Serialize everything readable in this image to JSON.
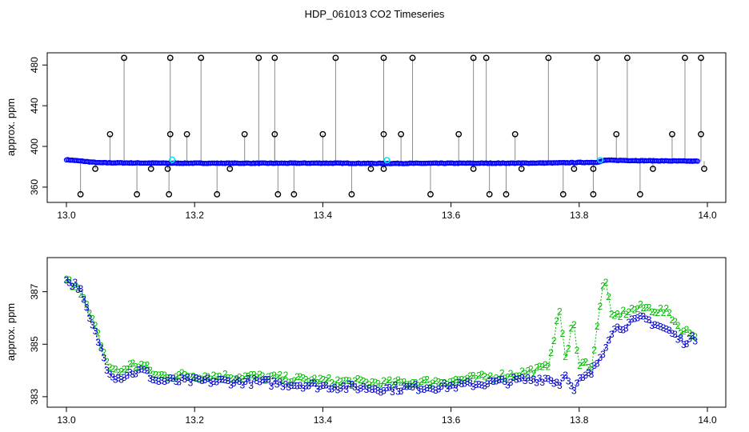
{
  "title": "HDP_061013  CO2 Timeseries",
  "colors": {
    "raw_points": "#000000",
    "raw_lines": "#8c8c8c",
    "smooth_points": "#0000ff",
    "flagged_points": "#00e5ee",
    "series2": "#00bb00",
    "series3": "#0000cc"
  },
  "chart_data": [
    {
      "type": "scatter",
      "title": "",
      "xlabel": "",
      "ylabel": "approx. ppm",
      "xlim": [
        13.0,
        14.0
      ],
      "ylim": [
        345,
        492
      ],
      "xticks": [
        13.0,
        13.2,
        13.4,
        13.6,
        13.8,
        14.0
      ],
      "xtick_labels": [
        "13.0",
        "13.2",
        "13.4",
        "13.6",
        "13.8",
        "14.0"
      ],
      "yticks": [
        360,
        400,
        440,
        480
      ],
      "ytick_labels": [
        "360",
        "400",
        "440",
        "480"
      ],
      "grid": false,
      "baseline": [
        [
          13.0,
          387
        ],
        [
          13.05,
          384
        ],
        [
          13.15,
          383.6
        ],
        [
          13.3,
          383.5
        ],
        [
          13.4,
          383.6
        ],
        [
          13.5,
          383.3
        ],
        [
          13.6,
          383.5
        ],
        [
          13.7,
          383.6
        ],
        [
          13.76,
          383.8
        ],
        [
          13.83,
          384.5
        ],
        [
          13.84,
          386.5
        ],
        [
          13.9,
          386
        ],
        [
          13.98,
          385.5
        ]
      ],
      "outliers_high": [
        13.09,
        13.162,
        13.21,
        13.3,
        13.325,
        13.42,
        13.495,
        13.54,
        13.635,
        13.655,
        13.752,
        13.828,
        13.875,
        13.965,
        13.99
      ],
      "outliers_mid": [
        13.068,
        13.162,
        13.188,
        13.278,
        13.325,
        13.4,
        13.495,
        13.522,
        13.612,
        13.7,
        13.858,
        13.945,
        13.99
      ],
      "outliers_low": [
        13.022,
        13.11,
        13.16,
        13.235,
        13.33,
        13.355,
        13.445,
        13.568,
        13.66,
        13.686,
        13.775,
        13.822,
        13.895
      ],
      "outliers_near": [
        13.045,
        13.132,
        13.158,
        13.255,
        13.475,
        13.495,
        13.635,
        13.71,
        13.792,
        13.822,
        13.915,
        13.995
      ],
      "outlier_values": {
        "high": 487,
        "mid": 412,
        "low": 353,
        "near": 378
      },
      "flagged": [
        [
          13.165,
          387
        ],
        [
          13.5,
          386.5
        ],
        [
          13.833,
          386.5
        ]
      ]
    },
    {
      "type": "scatter",
      "title": "",
      "xlabel": "",
      "ylabel": "approx. ppm",
      "xlim": [
        13.0,
        14.0
      ],
      "ylim": [
        382.6,
        388.3
      ],
      "xticks": [
        13.0,
        13.2,
        13.4,
        13.6,
        13.8,
        14.0
      ],
      "xtick_labels": [
        "13.0",
        "13.2",
        "13.4",
        "13.6",
        "13.8",
        "14.0"
      ],
      "yticks": [
        383,
        385,
        387
      ],
      "ytick_labels": [
        "383",
        "385",
        "387"
      ],
      "grid": false,
      "series": [
        {
          "marker": "2",
          "profile": [
            [
              13.0,
              387.4
            ],
            [
              13.02,
              387.2
            ],
            [
              13.035,
              386.2
            ],
            [
              13.05,
              385.3
            ],
            [
              13.065,
              384.2
            ],
            [
              13.08,
              383.9
            ],
            [
              13.1,
              384.2
            ],
            [
              13.12,
              384.2
            ],
            [
              13.14,
              383.8
            ],
            [
              13.2,
              383.8
            ],
            [
              13.3,
              383.75
            ],
            [
              13.4,
              383.6
            ],
            [
              13.5,
              383.5
            ],
            [
              13.6,
              383.6
            ],
            [
              13.7,
              383.85
            ],
            [
              13.75,
              384.1
            ],
            [
              13.77,
              386.3
            ],
            [
              13.78,
              384.2
            ],
            [
              13.79,
              386
            ],
            [
              13.8,
              384.3
            ],
            [
              13.82,
              384.2
            ],
            [
              13.84,
              387.7
            ],
            [
              13.85,
              386
            ],
            [
              13.88,
              386.3
            ],
            [
              13.9,
              386.4
            ],
            [
              13.94,
              386.2
            ],
            [
              13.96,
              385.5
            ],
            [
              13.98,
              385.4
            ]
          ]
        },
        {
          "marker": "3",
          "profile": [
            [
              13.0,
              387.4
            ],
            [
              13.02,
              387.2
            ],
            [
              13.035,
              386
            ],
            [
              13.05,
              385.1
            ],
            [
              13.065,
              384
            ],
            [
              13.08,
              383.7
            ],
            [
              13.1,
              383.9
            ],
            [
              13.12,
              384
            ],
            [
              13.14,
              383.6
            ],
            [
              13.2,
              383.6
            ],
            [
              13.3,
              383.55
            ],
            [
              13.4,
              383.4
            ],
            [
              13.5,
              383.3
            ],
            [
              13.6,
              383.4
            ],
            [
              13.7,
              383.6
            ],
            [
              13.75,
              383.7
            ],
            [
              13.77,
              383.5
            ],
            [
              13.78,
              384
            ],
            [
              13.79,
              383.1
            ],
            [
              13.8,
              383.6
            ],
            [
              13.82,
              383.9
            ],
            [
              13.84,
              384.9
            ],
            [
              13.85,
              385.5
            ],
            [
              13.88,
              385.8
            ],
            [
              13.9,
              386
            ],
            [
              13.94,
              385.5
            ],
            [
              13.96,
              385.1
            ],
            [
              13.98,
              385.2
            ]
          ]
        }
      ]
    }
  ]
}
